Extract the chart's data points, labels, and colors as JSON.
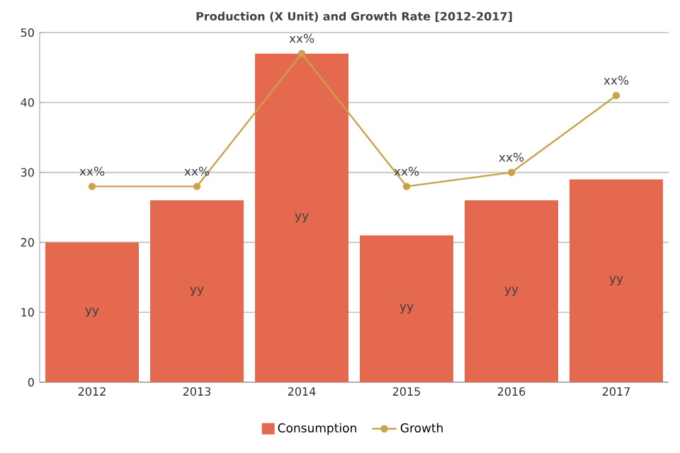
{
  "chart_data": {
    "type": "bar",
    "title": "Production (X Unit) and Growth Rate [2012-2017]",
    "categories": [
      "2012",
      "2013",
      "2014",
      "2015",
      "2016",
      "2017"
    ],
    "series": [
      {
        "name": "Consumption",
        "color": "#e5694e",
        "values": [
          20,
          26,
          47,
          21,
          26,
          29
        ],
        "value_labels": [
          "yy",
          "yy",
          "yy",
          "yy",
          "yy",
          "yy"
        ]
      },
      {
        "name": "Growth",
        "type": "line",
        "color": "#c9a24b",
        "marker": "circle",
        "values": [
          28,
          28,
          47,
          28,
          30,
          41
        ],
        "value_labels": [
          "xx%",
          "xx%",
          "xx%",
          "xx%",
          "xx%",
          "xx%"
        ]
      }
    ],
    "ylim": [
      0,
      50
    ],
    "yticks": [
      0,
      10,
      20,
      30,
      40,
      50
    ],
    "grid": "y",
    "legend": "bottom"
  }
}
